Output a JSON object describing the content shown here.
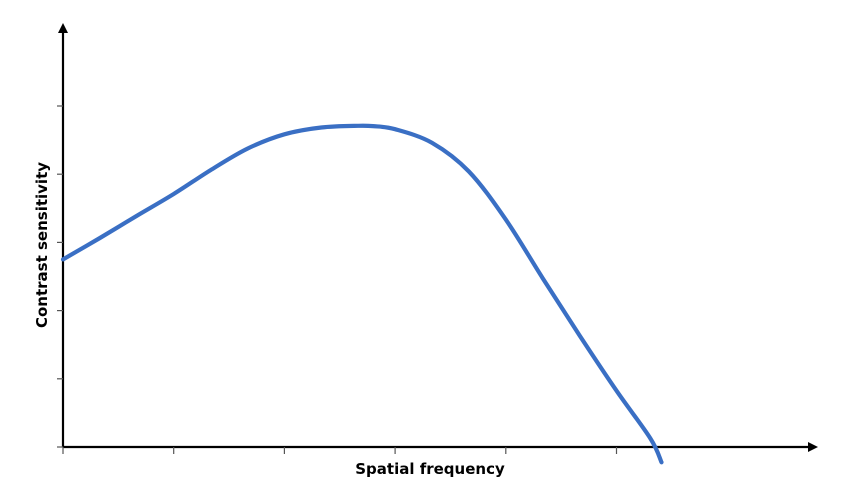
{
  "chart_data": {
    "type": "line",
    "title": "",
    "xlabel": "Spatial frequency",
    "ylabel": "Contrast sensitivity",
    "xlim": [
      0,
      100
    ],
    "ylim": [
      0,
      100
    ],
    "x_ticks": [
      0,
      15,
      30,
      45,
      60,
      75
    ],
    "y_ticks": [
      0,
      20,
      40,
      60,
      80,
      100
    ],
    "grid": false,
    "legend": "none",
    "series": [
      {
        "color": "#3a6fc4",
        "x": [
          0,
          5,
          10,
          15,
          20,
          25,
          30,
          35,
          40,
          42,
          45,
          50,
          55,
          60,
          65,
          70,
          75,
          79.6,
          81.1
        ],
        "y": [
          55,
          61.3,
          67.8,
          74.2,
          81.2,
          87.5,
          91.7,
          93.7,
          94.2,
          94.1,
          93.2,
          89.2,
          80.8,
          66.7,
          49.5,
          32.7,
          16.5,
          2.5,
          -4.5
        ]
      }
    ]
  }
}
